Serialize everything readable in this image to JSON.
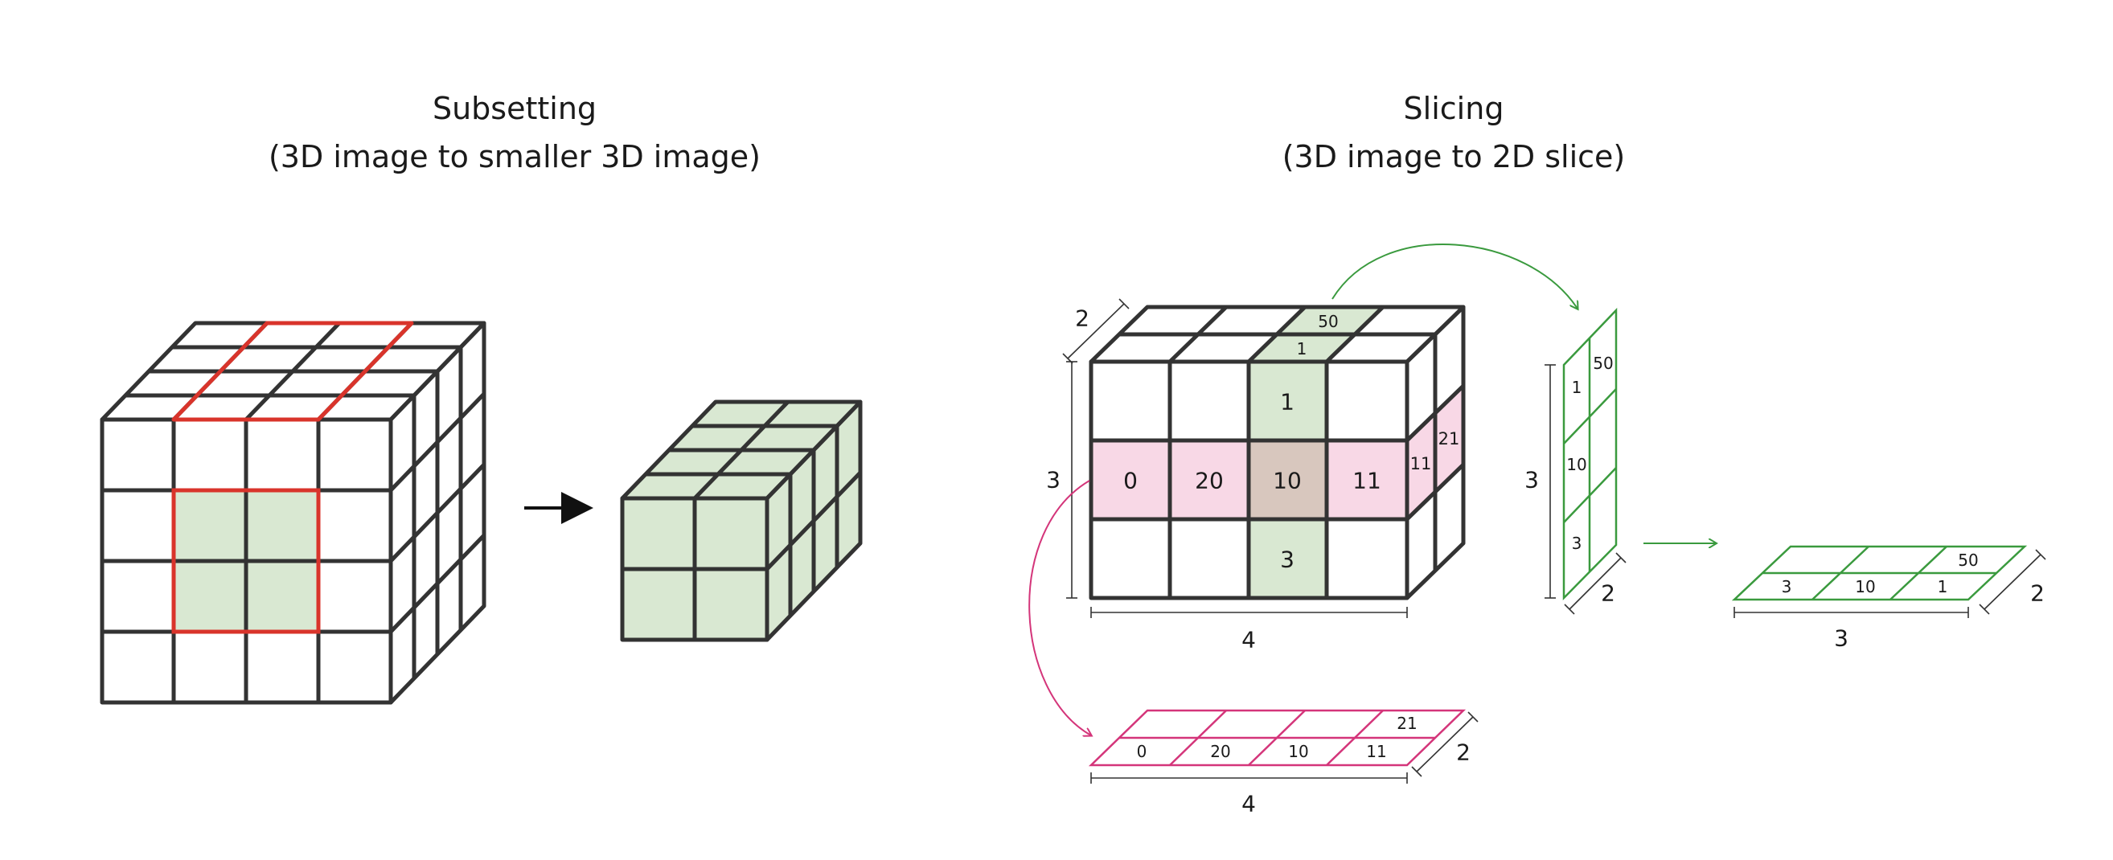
{
  "diagram": {
    "subsetting": {
      "title_line1": "Subsetting",
      "title_line2": "(3D image to smaller 3D image)"
    },
    "slicing": {
      "title_line1": "Slicing",
      "title_line2": "(3D image to 2D slice)",
      "big_cube": {
        "dim_depth": "2",
        "dim_height": "3",
        "dim_width": "4",
        "top_cells": [
          "50",
          "1"
        ],
        "front_column_cells": [
          "1",
          "3"
        ],
        "front_row_cells": [
          "0",
          "20",
          "10",
          "11"
        ],
        "side_row_cells": [
          "11",
          "21"
        ]
      },
      "vertical_slice": {
        "dim_height": "3",
        "dim_depth": "2",
        "cells": [
          "50",
          "1",
          "10",
          "3"
        ]
      },
      "horizontal_green_slice": {
        "dim_width": "3",
        "dim_depth": "2",
        "cells": [
          "50",
          "3",
          "10",
          "1"
        ]
      },
      "horizontal_pink_slice": {
        "dim_width": "4",
        "dim_depth": "2",
        "cells": [
          "21",
          "0",
          "20",
          "10",
          "11"
        ]
      }
    },
    "colors": {
      "grid": "#333333",
      "highlight_red": "#d9342b",
      "green_fill": "#d9e8d2",
      "green_line": "#3a9a3e",
      "pink_fill": "#f8d8e6",
      "pink_line": "#d4357a",
      "overlap_fill": "#d8c7be"
    }
  }
}
